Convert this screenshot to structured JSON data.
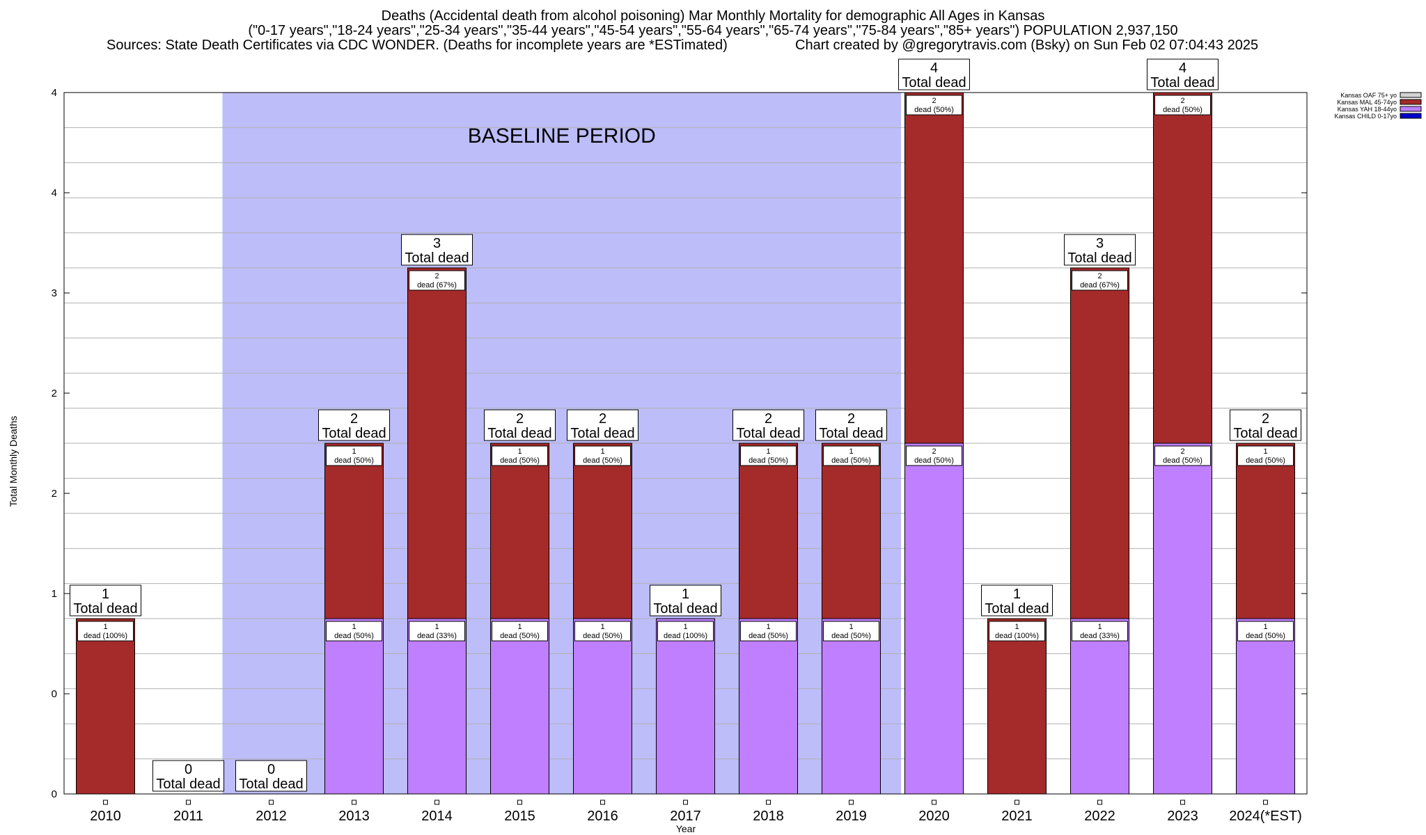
{
  "title": {
    "line1": "Deaths (Accidental death from alcohol poisoning) Mar Monthly Mortality for demographic All Ages in Kansas",
    "line2": "(\"0-17 years\",\"18-24 years\",\"25-34 years\",\"35-44 years\",\"45-54 years\",\"55-64 years\",\"65-74 years\",\"75-84 years\",\"85+ years\") POPULATION 2,937,150",
    "sources": "Sources: State Death Certificates via CDC WONDER. (Deaths for incomplete years are *ESTimated)",
    "credit": "Chart created by @gregorytravis.com (Bsky) on Sun Feb 02 07:04:43 2025"
  },
  "chart_data": {
    "type": "bar",
    "stacked": true,
    "xlabel": "Year",
    "ylabel": "Total Monthly Deaths",
    "ylim": [
      0,
      4
    ],
    "y_tick_labels": [
      "0",
      "0",
      "1",
      "2",
      "2",
      "3",
      "4",
      "4"
    ],
    "grid": true,
    "categories": [
      "2010",
      "2011",
      "2012",
      "2013",
      "2014",
      "2015",
      "2016",
      "2017",
      "2018",
      "2019",
      "2020",
      "2021",
      "2022",
      "2023",
      "2024(*EST)"
    ],
    "series": [
      {
        "name": "Kansas CHILD 0-17yo",
        "color": "#0000cc",
        "values": [
          0,
          0,
          0,
          0,
          0,
          0,
          0,
          0,
          0,
          0,
          0,
          0,
          0,
          0,
          0
        ]
      },
      {
        "name": "Kansas YAH 18-44yo",
        "color": "#bf7fff",
        "values": [
          0,
          0,
          0,
          1,
          1,
          1,
          1,
          1,
          1,
          1,
          2,
          0,
          1,
          2,
          1
        ]
      },
      {
        "name": "Kansas MAL 45-74yo",
        "color": "#a52a2a",
        "values": [
          1,
          0,
          0,
          1,
          2,
          1,
          1,
          0,
          1,
          1,
          2,
          1,
          2,
          2,
          1
        ]
      },
      {
        "name": "Kansas OAF 75+ yo",
        "color": "#d3d3d3",
        "values": [
          0,
          0,
          0,
          0,
          0,
          0,
          0,
          0,
          0,
          0,
          0,
          0,
          0,
          0,
          0
        ]
      }
    ],
    "totals": [
      1,
      0,
      0,
      2,
      3,
      2,
      2,
      1,
      2,
      2,
      4,
      1,
      3,
      4,
      2
    ],
    "total_label_suffix": "Total dead",
    "segment_labels": {
      "Kansas YAH 18-44yo": [
        null,
        null,
        null,
        "dead (50%)",
        "dead (33%)",
        "dead (50%)",
        "dead (50%)",
        "dead (100%)",
        "dead (50%)",
        "dead (50%)",
        "dead (50%)",
        null,
        "dead (33%)",
        "dead (50%)",
        "dead (50%)"
      ],
      "Kansas MAL 45-74yo": [
        "dead (100%)",
        null,
        null,
        "dead (50%)",
        "dead (67%)",
        "dead (50%)",
        "dead (50%)",
        null,
        "dead (50%)",
        "dead (50%)",
        "dead (50%)",
        "dead (100%)",
        "dead (67%)",
        "dead (50%)",
        "dead (50%)"
      ]
    },
    "baseline": {
      "label": "BASELINE PERIOD",
      "from": "2012",
      "to": "2019",
      "color": "#bdbdfa"
    },
    "legend_placement": "top-right",
    "legend_order": [
      "Kansas OAF 75+ yo",
      "Kansas MAL 45-74yo",
      "Kansas YAH 18-44yo",
      "Kansas CHILD 0-17yo"
    ]
  }
}
